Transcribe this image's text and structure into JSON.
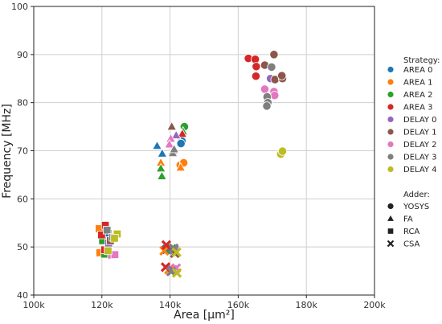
{
  "chart_data": {
    "type": "scatter",
    "xlabel": "Area [µm²]",
    "ylabel": "Frequency [MHz]",
    "xlim": [
      100000,
      200000
    ],
    "ylim": [
      40,
      100
    ],
    "grid": true,
    "xticks": [
      {
        "v": 100000,
        "label": "100k"
      },
      {
        "v": 120000,
        "label": "120k"
      },
      {
        "v": 140000,
        "label": "140k"
      },
      {
        "v": 160000,
        "label": "160k"
      },
      {
        "v": 180000,
        "label": "180k"
      },
      {
        "v": 200000,
        "label": "200k"
      }
    ],
    "yticks": [
      40,
      50,
      60,
      70,
      80,
      90,
      100
    ],
    "legend_placement": "right",
    "legend_strategy_title": "Strategy:",
    "legend_adder_title": "Adder:",
    "strategies": [
      {
        "name": "AREA 0",
        "color": "#1f77b4"
      },
      {
        "name": "AREA 1",
        "color": "#ff7f0e"
      },
      {
        "name": "AREA 2",
        "color": "#2ca02c"
      },
      {
        "name": "AREA 3",
        "color": "#d62728"
      },
      {
        "name": "DELAY 0",
        "color": "#9467bd"
      },
      {
        "name": "DELAY 1",
        "color": "#8c564b"
      },
      {
        "name": "DELAY 2",
        "color": "#e377c2"
      },
      {
        "name": "DELAY 3",
        "color": "#7f7f7f"
      },
      {
        "name": "DELAY 4",
        "color": "#bcbd22"
      }
    ],
    "adders": [
      {
        "name": "YOSYS",
        "marker": "circle"
      },
      {
        "name": "FA",
        "marker": "triangle"
      },
      {
        "name": "RCA",
        "marker": "square"
      },
      {
        "name": "CSA",
        "marker": "x"
      }
    ],
    "points": [
      {
        "x": 143500,
        "y": 72,
        "s": "AREA 0",
        "a": "YOSYS"
      },
      {
        "x": 143200,
        "y": 71.5,
        "s": "AREA 0",
        "a": "YOSYS"
      },
      {
        "x": 143000,
        "y": 67,
        "s": "AREA 1",
        "a": "YOSYS"
      },
      {
        "x": 144000,
        "y": 67.5,
        "s": "AREA 1",
        "a": "YOSYS"
      },
      {
        "x": 144200,
        "y": 75,
        "s": "AREA 2",
        "a": "YOSYS"
      },
      {
        "x": 163000,
        "y": 89.2,
        "s": "AREA 3",
        "a": "YOSYS"
      },
      {
        "x": 165000,
        "y": 89,
        "s": "AREA 3",
        "a": "YOSYS"
      },
      {
        "x": 165300,
        "y": 87.5,
        "s": "AREA 3",
        "a": "YOSYS"
      },
      {
        "x": 165200,
        "y": 85.5,
        "s": "AREA 3",
        "a": "YOSYS"
      },
      {
        "x": 169500,
        "y": 85,
        "s": "DELAY 0",
        "a": "YOSYS"
      },
      {
        "x": 170500,
        "y": 90,
        "s": "DELAY 1",
        "a": "YOSYS"
      },
      {
        "x": 167800,
        "y": 87.8,
        "s": "DELAY 1",
        "a": "YOSYS"
      },
      {
        "x": 170800,
        "y": 84.8,
        "s": "DELAY 1",
        "a": "YOSYS"
      },
      {
        "x": 173000,
        "y": 85,
        "s": "DELAY 1",
        "a": "YOSYS"
      },
      {
        "x": 172800,
        "y": 85.6,
        "s": "DELAY 1",
        "a": "YOSYS"
      },
      {
        "x": 167800,
        "y": 82.8,
        "s": "DELAY 2",
        "a": "YOSYS"
      },
      {
        "x": 170500,
        "y": 82.3,
        "s": "DELAY 2",
        "a": "YOSYS"
      },
      {
        "x": 170700,
        "y": 81.5,
        "s": "DELAY 2",
        "a": "YOSYS"
      },
      {
        "x": 169800,
        "y": 87.4,
        "s": "DELAY 3",
        "a": "YOSYS"
      },
      {
        "x": 168500,
        "y": 81.2,
        "s": "DELAY 3",
        "a": "YOSYS"
      },
      {
        "x": 168700,
        "y": 80,
        "s": "DELAY 3",
        "a": "YOSYS"
      },
      {
        "x": 168400,
        "y": 79.3,
        "s": "DELAY 3",
        "a": "YOSYS"
      },
      {
        "x": 172500,
        "y": 69.3,
        "s": "DELAY 4",
        "a": "YOSYS"
      },
      {
        "x": 173000,
        "y": 69.9,
        "s": "DELAY 4",
        "a": "YOSYS"
      },
      {
        "x": 137700,
        "y": 69.4,
        "s": "AREA 0",
        "a": "FA"
      },
      {
        "x": 136200,
        "y": 71,
        "s": "AREA 0",
        "a": "FA"
      },
      {
        "x": 137300,
        "y": 67.5,
        "s": "AREA 1",
        "a": "FA"
      },
      {
        "x": 143100,
        "y": 66.5,
        "s": "AREA 1",
        "a": "FA"
      },
      {
        "x": 137300,
        "y": 66.3,
        "s": "AREA 2",
        "a": "FA"
      },
      {
        "x": 137600,
        "y": 64.7,
        "s": "AREA 2",
        "a": "FA"
      },
      {
        "x": 143800,
        "y": 74,
        "s": "AREA 2",
        "a": "FA"
      },
      {
        "x": 143600,
        "y": 73.5,
        "s": "AREA 3",
        "a": "FA"
      },
      {
        "x": 141800,
        "y": 73.2,
        "s": "DELAY 0",
        "a": "FA"
      },
      {
        "x": 140500,
        "y": 75,
        "s": "DELAY 1",
        "a": "FA"
      },
      {
        "x": 140800,
        "y": 70,
        "s": "DELAY 1",
        "a": "FA"
      },
      {
        "x": 140200,
        "y": 72.5,
        "s": "DELAY 2",
        "a": "FA"
      },
      {
        "x": 139800,
        "y": 71.3,
        "s": "DELAY 2",
        "a": "FA"
      },
      {
        "x": 140800,
        "y": 69.5,
        "s": "DELAY 3",
        "a": "FA"
      },
      {
        "x": 141200,
        "y": 70.3,
        "s": "DELAY 3",
        "a": "FA"
      },
      {
        "x": 120400,
        "y": 52.2,
        "s": "AREA 0",
        "a": "RCA"
      },
      {
        "x": 121800,
        "y": 52.8,
        "s": "AREA 0",
        "a": "RCA"
      },
      {
        "x": 119200,
        "y": 53.8,
        "s": "AREA 1",
        "a": "RCA"
      },
      {
        "x": 119400,
        "y": 48.8,
        "s": "AREA 1",
        "a": "RCA"
      },
      {
        "x": 120800,
        "y": 48.5,
        "s": "AREA 2",
        "a": "RCA"
      },
      {
        "x": 120200,
        "y": 51.3,
        "s": "AREA 2",
        "a": "RCA"
      },
      {
        "x": 121000,
        "y": 54.5,
        "s": "AREA 3",
        "a": "RCA"
      },
      {
        "x": 119900,
        "y": 52.5,
        "s": "AREA 3",
        "a": "RCA"
      },
      {
        "x": 120800,
        "y": 49.4,
        "s": "AREA 3",
        "a": "RCA"
      },
      {
        "x": 122000,
        "y": 50.8,
        "s": "DELAY 0",
        "a": "RCA"
      },
      {
        "x": 122500,
        "y": 51.3,
        "s": "DELAY 1",
        "a": "RCA"
      },
      {
        "x": 122800,
        "y": 48.3,
        "s": "DELAY 2",
        "a": "RCA"
      },
      {
        "x": 123800,
        "y": 48.4,
        "s": "DELAY 2",
        "a": "RCA"
      },
      {
        "x": 121500,
        "y": 53.5,
        "s": "DELAY 3",
        "a": "RCA"
      },
      {
        "x": 123200,
        "y": 52,
        "s": "DELAY 3",
        "a": "RCA"
      },
      {
        "x": 124500,
        "y": 52.7,
        "s": "DELAY 4",
        "a": "RCA"
      },
      {
        "x": 121800,
        "y": 49.2,
        "s": "DELAY 4",
        "a": "RCA"
      },
      {
        "x": 123700,
        "y": 51.8,
        "s": "DELAY 4",
        "a": "RCA"
      },
      {
        "x": 139000,
        "y": 49.5,
        "s": "AREA 0",
        "a": "CSA"
      },
      {
        "x": 138300,
        "y": 49.2,
        "s": "AREA 1",
        "a": "CSA"
      },
      {
        "x": 139700,
        "y": 45.3,
        "s": "AREA 1",
        "a": "CSA"
      },
      {
        "x": 140500,
        "y": 49.6,
        "s": "AREA 2",
        "a": "CSA"
      },
      {
        "x": 138900,
        "y": 50.4,
        "s": "AREA 3",
        "a": "CSA"
      },
      {
        "x": 138700,
        "y": 45.8,
        "s": "AREA 3",
        "a": "CSA"
      },
      {
        "x": 141200,
        "y": 49.4,
        "s": "DELAY 0",
        "a": "CSA"
      },
      {
        "x": 140800,
        "y": 45.2,
        "s": "DELAY 0",
        "a": "CSA"
      },
      {
        "x": 141400,
        "y": 48.7,
        "s": "DELAY 1",
        "a": "CSA"
      },
      {
        "x": 141800,
        "y": 45.6,
        "s": "DELAY 2",
        "a": "CSA"
      },
      {
        "x": 141100,
        "y": 49.7,
        "s": "DELAY 3",
        "a": "CSA"
      },
      {
        "x": 140300,
        "y": 44.9,
        "s": "DELAY 3",
        "a": "CSA"
      },
      {
        "x": 141900,
        "y": 48.9,
        "s": "DELAY 4",
        "a": "CSA"
      },
      {
        "x": 142000,
        "y": 44.6,
        "s": "DELAY 4",
        "a": "CSA"
      }
    ]
  }
}
